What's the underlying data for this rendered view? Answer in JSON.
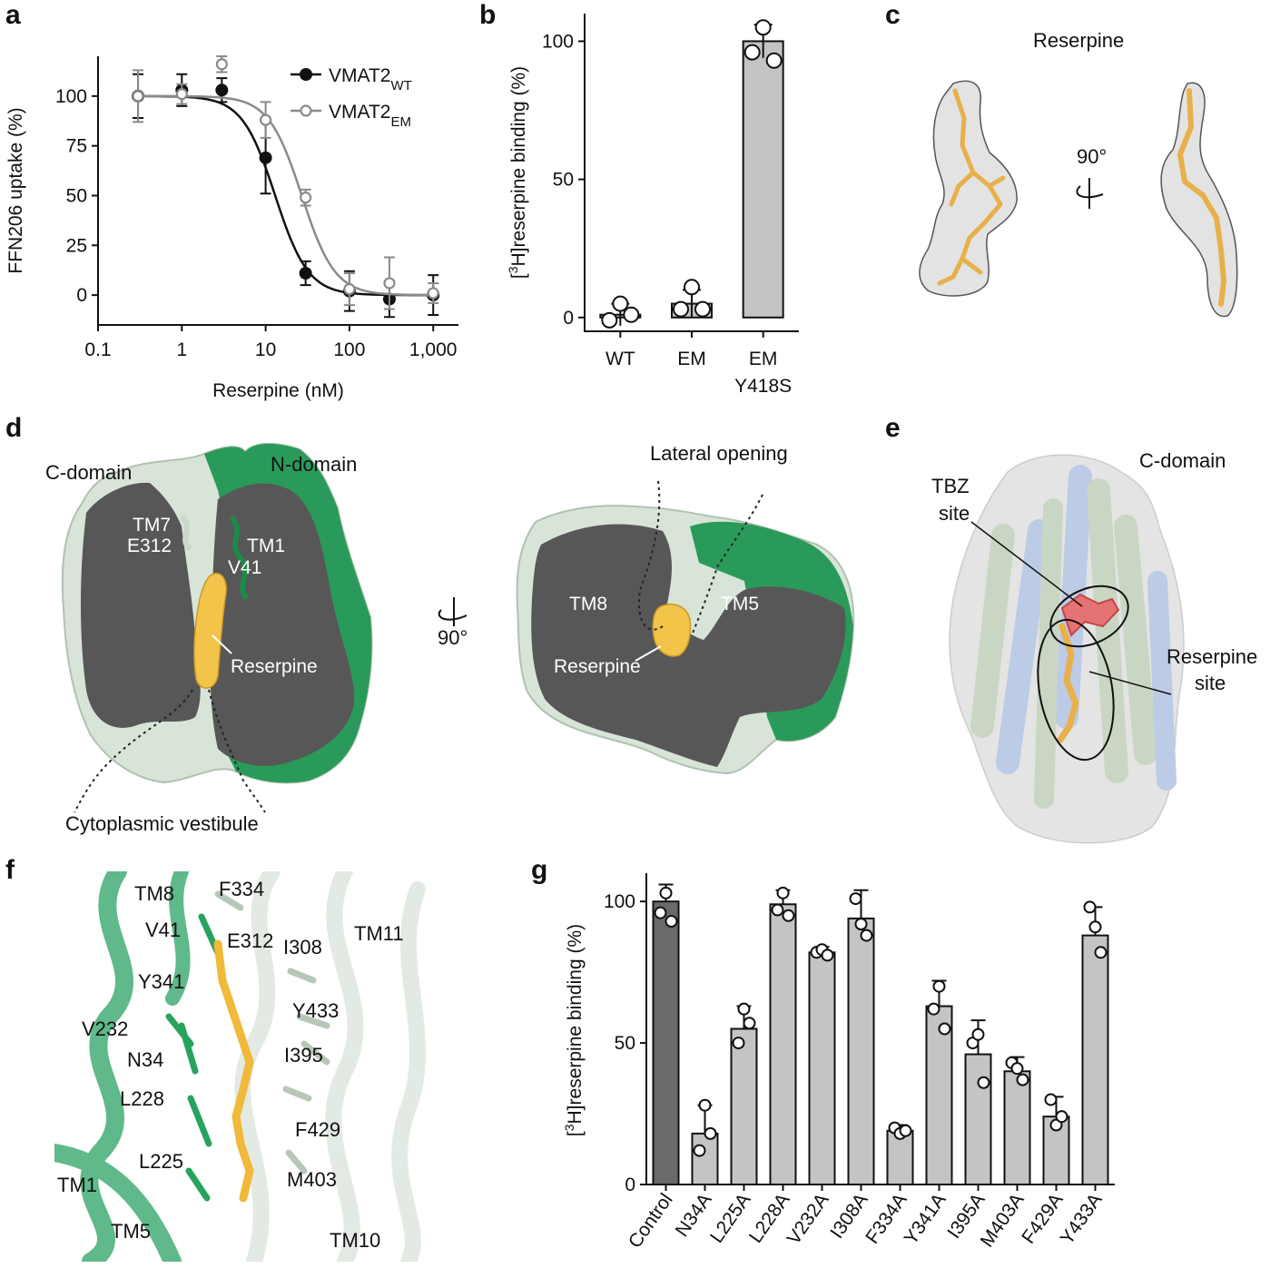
{
  "panels": {
    "a": "a",
    "b": "b",
    "c": "c",
    "d": "d",
    "e": "e",
    "f": "f",
    "g": "g"
  },
  "chart_data": [
    {
      "panel": "a",
      "type": "line",
      "xlabel": "Reserpine (nM)",
      "ylabel": "FFN206 uptake (%)",
      "x_scale": "log",
      "xlim": [
        0.1,
        2000
      ],
      "ylim": [
        -15,
        120
      ],
      "x_ticks": [
        "0.1",
        "1",
        "10",
        "100",
        "1,000"
      ],
      "y_ticks": [
        "0",
        "25",
        "50",
        "75",
        "100"
      ],
      "legend_position": "top-right",
      "series": [
        {
          "name": "VMAT2",
          "subscript": "WT",
          "color": "#111111",
          "marker": "filled-circle",
          "x": [
            0.3,
            1,
            3,
            10,
            30,
            100,
            300,
            1000
          ],
          "y": [
            100,
            103,
            103,
            69,
            11,
            2,
            -2,
            0
          ],
          "err": [
            11,
            8,
            6,
            18,
            6,
            10,
            9,
            10
          ],
          "ic50": 13
        },
        {
          "name": "VMAT2",
          "subscript": "EM",
          "color": "#8a8a8a",
          "marker": "open-circle",
          "x": [
            0.3,
            1,
            3,
            10,
            30,
            100,
            300,
            1000
          ],
          "y": [
            100,
            101,
            116,
            88,
            49,
            3,
            6,
            1
          ],
          "err": [
            13,
            5,
            4,
            9,
            4,
            8,
            13,
            5
          ],
          "ic50": 27
        }
      ]
    },
    {
      "panel": "b",
      "type": "bar",
      "ylabel": "[3H]reserpine binding (%)",
      "ylabel_sup": "3",
      "ylabel_pre": "[",
      "ylabel_post": "H]reserpine binding (%)",
      "ylim": [
        -5,
        110
      ],
      "y_ticks": [
        "0",
        "50",
        "100"
      ],
      "categories": [
        "WT",
        "EM",
        "EM Y418S"
      ],
      "category_lines": [
        [
          "WT"
        ],
        [
          "EM"
        ],
        [
          "EM",
          "Y418S"
        ]
      ],
      "values": [
        1,
        5,
        100
      ],
      "errors": [
        4,
        5,
        6
      ],
      "points": [
        [
          -1,
          5,
          1
        ],
        [
          3,
          11,
          3
        ],
        [
          96,
          105,
          93
        ]
      ],
      "bar_color": "#c4c4c4"
    },
    {
      "panel": "g",
      "type": "bar",
      "ylabel_pre": "[",
      "ylabel_sup": "3",
      "ylabel_post": "H]reserpine binding (%)",
      "ylim": [
        0,
        110
      ],
      "y_ticks": [
        "0",
        "50",
        "100"
      ],
      "categories": [
        "Control",
        "N34A",
        "L225A",
        "L228A",
        "V232A",
        "I308A",
        "F334A",
        "Y341A",
        "I395A",
        "M403A",
        "F429A",
        "Y433A"
      ],
      "values": [
        100,
        18,
        55,
        99,
        82,
        94,
        19,
        63,
        46,
        40,
        24,
        88
      ],
      "errors": [
        6,
        10,
        8,
        5,
        2,
        10,
        2,
        9,
        12,
        5,
        7,
        10
      ],
      "points": [
        [
          96,
          103,
          93
        ],
        [
          12,
          28,
          18
        ],
        [
          50,
          62,
          57
        ],
        [
          97,
          103,
          95
        ],
        [
          82,
          83,
          81
        ],
        [
          101,
          92,
          88
        ],
        [
          20,
          18,
          19
        ],
        [
          62,
          70,
          55
        ],
        [
          50,
          53,
          36
        ],
        [
          43,
          41,
          37
        ],
        [
          30,
          21,
          24
        ],
        [
          98,
          91,
          82
        ]
      ],
      "bar_colors": [
        "#6a6a6a",
        "#c4c4c4",
        "#c4c4c4",
        "#c4c4c4",
        "#c4c4c4",
        "#c4c4c4",
        "#c4c4c4",
        "#c4c4c4",
        "#c4c4c4",
        "#c4c4c4",
        "#c4c4c4",
        "#c4c4c4"
      ]
    }
  ],
  "panel_c": {
    "title": "Reserpine",
    "rotation": "90°"
  },
  "panel_d": {
    "c_domain": "C-domain",
    "n_domain": "N-domain",
    "tm7": "TM7",
    "e312": "E312",
    "tm1": "TM1",
    "v41": "V41",
    "reserpine_left": "Reserpine",
    "vestibule": "Cytoplasmic vestibule",
    "rotation": "90°",
    "lateral_opening": "Lateral opening",
    "tm8": "TM8",
    "tm5": "TM5",
    "reserpine_right": "Reserpine"
  },
  "panel_e": {
    "c_domain": "C-domain",
    "tbz_1": "TBZ",
    "tbz_2": "site",
    "res_1": "Reserpine",
    "res_2": "site"
  },
  "panel_f": {
    "labels": [
      "TM8",
      "F334",
      "V41",
      "E312",
      "I308",
      "TM11",
      "Y341",
      "Y433",
      "V232",
      "N34",
      "I395",
      "L228",
      "F429",
      "L225",
      "TM1",
      "M403",
      "TM5",
      "TM10"
    ]
  }
}
